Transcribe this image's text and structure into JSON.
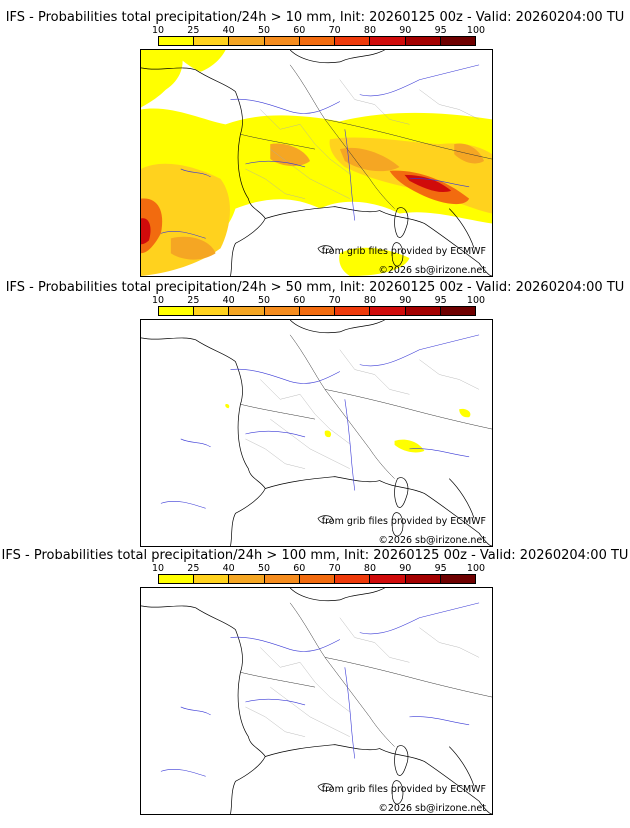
{
  "colorbar": {
    "ticks": [
      "10",
      "25",
      "40",
      "50",
      "60",
      "70",
      "80",
      "90",
      "95",
      "100"
    ],
    "colors": [
      "#ffff00",
      "#ffd21e",
      "#f5a623",
      "#f58c1e",
      "#f26b0f",
      "#ee3a0b",
      "#d00b0b",
      "#a30000",
      "#6e0000"
    ]
  },
  "panels": [
    {
      "title": "IFS - Probabilities total precipitation/24h > 10 mm, Init: 20260125 00z - Valid: 20260204:00 TU",
      "credit_source": "from grib files provided by ECMWF",
      "credit_copyright": "©2026 sb@irizone.net"
    },
    {
      "title": "IFS - Probabilities total precipitation/24h > 50 mm, Init: 20260125 00z - Valid: 20260204:00 TU",
      "credit_source": "from grib files provided by ECMWF",
      "credit_copyright": "©2026 sb@irizone.net"
    },
    {
      "title": "IFS - Probabilities total precipitation/24h > 100 mm, Init: 20260125 00z - Valid: 20260204:00 TU",
      "credit_source": "from grib files provided by ECMWF",
      "credit_copyright": "©2026 sb@irizone.net"
    }
  ]
}
